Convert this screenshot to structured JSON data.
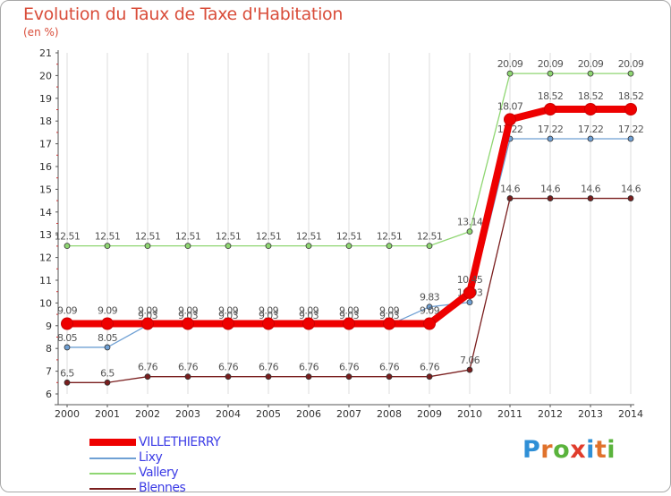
{
  "header": {
    "title": "Evolution du Taux de Taxe d'Habitation",
    "subtitle": "(en %)"
  },
  "logo": {
    "text": "Proxiti",
    "letter_colors": [
      "#2f8fd6",
      "#e0722c",
      "#5ab33c",
      "#e03c2c",
      "#2f8fd6",
      "#e0722c",
      "#5ab33c"
    ]
  },
  "chart_data": {
    "type": "line",
    "title": "Evolution du Taux de Taxe d'Habitation",
    "ylabel": "(en %)",
    "xlabel": "",
    "ylim": [
      6,
      21
    ],
    "yticks": [
      6,
      7,
      8,
      9,
      10,
      11,
      12,
      13,
      14,
      15,
      16,
      17,
      18,
      19,
      20,
      21
    ],
    "x": [
      "2000",
      "2001",
      "2002",
      "2003",
      "2004",
      "2005",
      "2006",
      "2007",
      "2008",
      "2009",
      "2010",
      "2011",
      "2012",
      "2013",
      "2014"
    ],
    "grid": "vertical",
    "legend_position": "bottom-left",
    "series": [
      {
        "name": "Blennes",
        "color": "#7a1e1e",
        "values": [
          6.5,
          6.5,
          6.76,
          6.76,
          6.76,
          6.76,
          6.76,
          6.76,
          6.76,
          6.76,
          7.06,
          14.6,
          14.6,
          14.6,
          14.6
        ],
        "labels": [
          "6.5",
          "6.5",
          "6.76",
          "6.76",
          "6.76",
          "6.76",
          "6.76",
          "6.76",
          "6.76",
          "6.76",
          "7.06",
          "14.6",
          "14.6",
          "14.6",
          "14.6"
        ]
      },
      {
        "name": "Vallery",
        "color": "#8fd672",
        "values": [
          12.51,
          12.51,
          12.51,
          12.51,
          12.51,
          12.51,
          12.51,
          12.51,
          12.51,
          12.51,
          13.14,
          20.09,
          20.09,
          20.09,
          20.09
        ],
        "labels": [
          "12.51",
          "12.51",
          "12.51",
          "12.51",
          "12.51",
          "12.51",
          "12.51",
          "12.51",
          "12.51",
          "12.51",
          "13.14",
          "20.09",
          "20.09",
          "20.09",
          "20.09"
        ]
      },
      {
        "name": "Lixy",
        "color": "#6fa0d4",
        "values": [
          8.05,
          8.05,
          9.03,
          9.03,
          9.03,
          9.03,
          9.03,
          9.03,
          9.03,
          9.83,
          10.03,
          17.22,
          17.22,
          17.22,
          17.22
        ],
        "labels": [
          "8.05",
          "8.05",
          "9.03",
          "9.03",
          "9.03",
          "9.03",
          "9.03",
          "9.03",
          "9.03",
          "9.83",
          "10.03",
          "17.22",
          "17.22",
          "17.22",
          "17.22"
        ]
      },
      {
        "name": "VILLETHIERRY",
        "color": "#ee0000",
        "values": [
          9.09,
          9.09,
          9.09,
          9.09,
          9.09,
          9.09,
          9.09,
          9.09,
          9.09,
          9.09,
          10.45,
          18.07,
          18.52,
          18.52,
          18.52
        ],
        "labels": [
          "9.09",
          "9.09",
          "9.09",
          "9.09",
          "9.09",
          "9.09",
          "9.09",
          "9.09",
          "9.09",
          "9.09",
          "10.45",
          "18.07",
          "18.52",
          "18.52",
          "18.52"
        ]
      }
    ],
    "legend": [
      "VILLETHIERRY",
      "Lixy",
      "Vallery",
      "Blennes"
    ]
  }
}
